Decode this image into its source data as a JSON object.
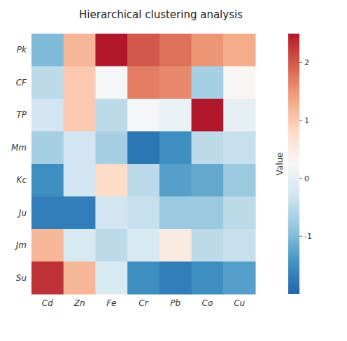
{
  "chart_data": {
    "type": "heatmap",
    "title": "Hierarchical clustering analysis",
    "categories": [
      "Cd",
      "Zn",
      "Fe",
      "Cr",
      "Pb",
      "Co",
      "Cu"
    ],
    "rows": [
      "Pk",
      "CF",
      "TP",
      "Mm",
      "Kc",
      "Ju",
      "Jm",
      "Su"
    ],
    "values": [
      [
        -1.0,
        1.2,
        2.5,
        2.0,
        1.8,
        1.5,
        1.3
      ],
      [
        -0.5,
        1.0,
        0.2,
        1.7,
        1.6,
        -0.7,
        0.3
      ],
      [
        -0.3,
        1.0,
        -0.5,
        0.2,
        0.05,
        2.5,
        0.0
      ],
      [
        -0.7,
        -0.3,
        -0.7,
        -1.8,
        -1.5,
        -0.5,
        -0.4
      ],
      [
        -1.5,
        -0.3,
        0.8,
        -0.5,
        -1.3,
        -1.2,
        -0.8
      ],
      [
        -1.7,
        -1.7,
        -0.3,
        -0.4,
        -0.8,
        -0.8,
        -0.5
      ],
      [
        1.2,
        -0.2,
        -0.5,
        -0.2,
        0.5,
        -0.5,
        -0.4
      ],
      [
        2.3,
        1.2,
        -0.2,
        -1.5,
        -1.7,
        -1.5,
        -1.3
      ]
    ],
    "colormap": [
      "#2166ac",
      "#4393c3",
      "#92c5de",
      "#d1e5f0",
      "#f7f7f7",
      "#fddbc7",
      "#f4a582",
      "#d6604d",
      "#b2182b"
    ],
    "color_range": [
      -2.0,
      2.5
    ],
    "color_ticks": [
      -1,
      0,
      1,
      2
    ],
    "color_label": "Value"
  }
}
